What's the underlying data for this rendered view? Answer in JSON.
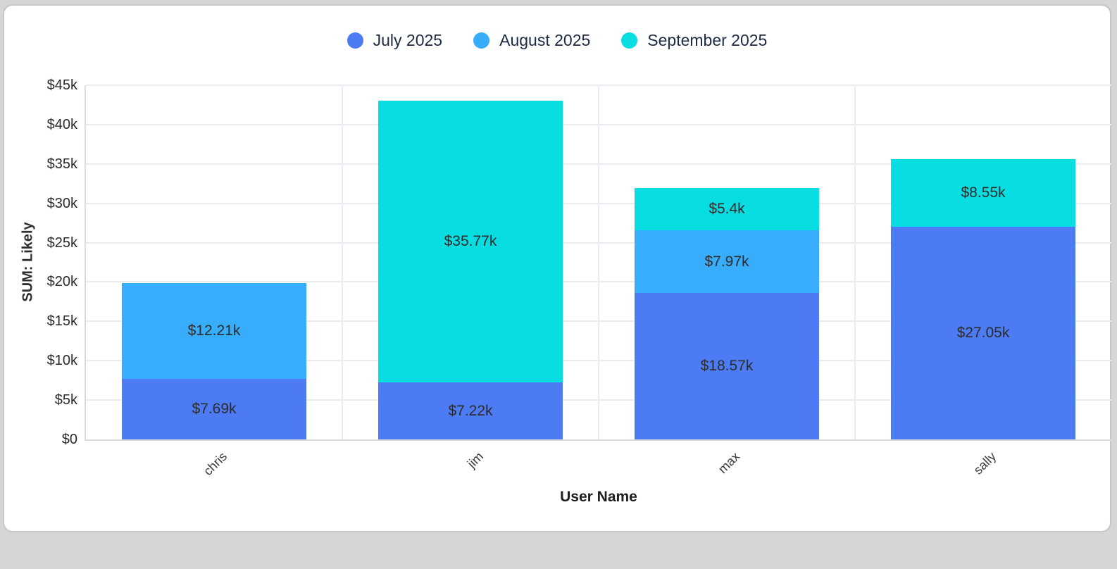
{
  "page": {
    "background_color": "#d6d6d6",
    "card_background": "#ffffff",
    "card_border_color": "#c6c6c6"
  },
  "chart_data": {
    "type": "bar",
    "stacked": true,
    "categories": [
      "chris",
      "jim",
      "max",
      "sally"
    ],
    "series": [
      {
        "name": "July 2025",
        "color": "#4d7bf3",
        "values": [
          7.69,
          7.22,
          18.57,
          27.05
        ],
        "labels": [
          "$7.69k",
          "$7.22k",
          "$18.57k",
          "$27.05k"
        ]
      },
      {
        "name": "August 2025",
        "color": "#38adfb",
        "values": [
          12.21,
          null,
          7.97,
          null
        ],
        "labels": [
          "$12.21k",
          null,
          "$7.97k",
          null
        ]
      },
      {
        "name": "September 2025",
        "color": "#08dde1",
        "values": [
          null,
          35.77,
          5.4,
          8.55
        ],
        "labels": [
          null,
          "$35.77k",
          "$5.4k",
          "$8.55k"
        ]
      }
    ],
    "units_note": "values in thousands of USD ($k)",
    "xlabel": "User Name",
    "ylabel": "SUM: Likely",
    "ylim": [
      0,
      45
    ],
    "y_ticks": [
      {
        "value": 0,
        "label": "$0"
      },
      {
        "value": 5,
        "label": "$5k"
      },
      {
        "value": 10,
        "label": "$10k"
      },
      {
        "value": 15,
        "label": "$15k"
      },
      {
        "value": 20,
        "label": "$20k"
      },
      {
        "value": 25,
        "label": "$25k"
      },
      {
        "value": 30,
        "label": "$30k"
      },
      {
        "value": 35,
        "label": "$35k"
      },
      {
        "value": 40,
        "label": "$40k"
      },
      {
        "value": 45,
        "label": "$45k"
      }
    ],
    "legend_position": "top-center",
    "grid": true,
    "colors": {
      "gridline": "#e9edf1",
      "axis_line": "#d9dde1",
      "tick_text": "#2b2b2b",
      "legend_text": "#1d2a44",
      "bar_label_text": "#2c2c2c"
    }
  }
}
